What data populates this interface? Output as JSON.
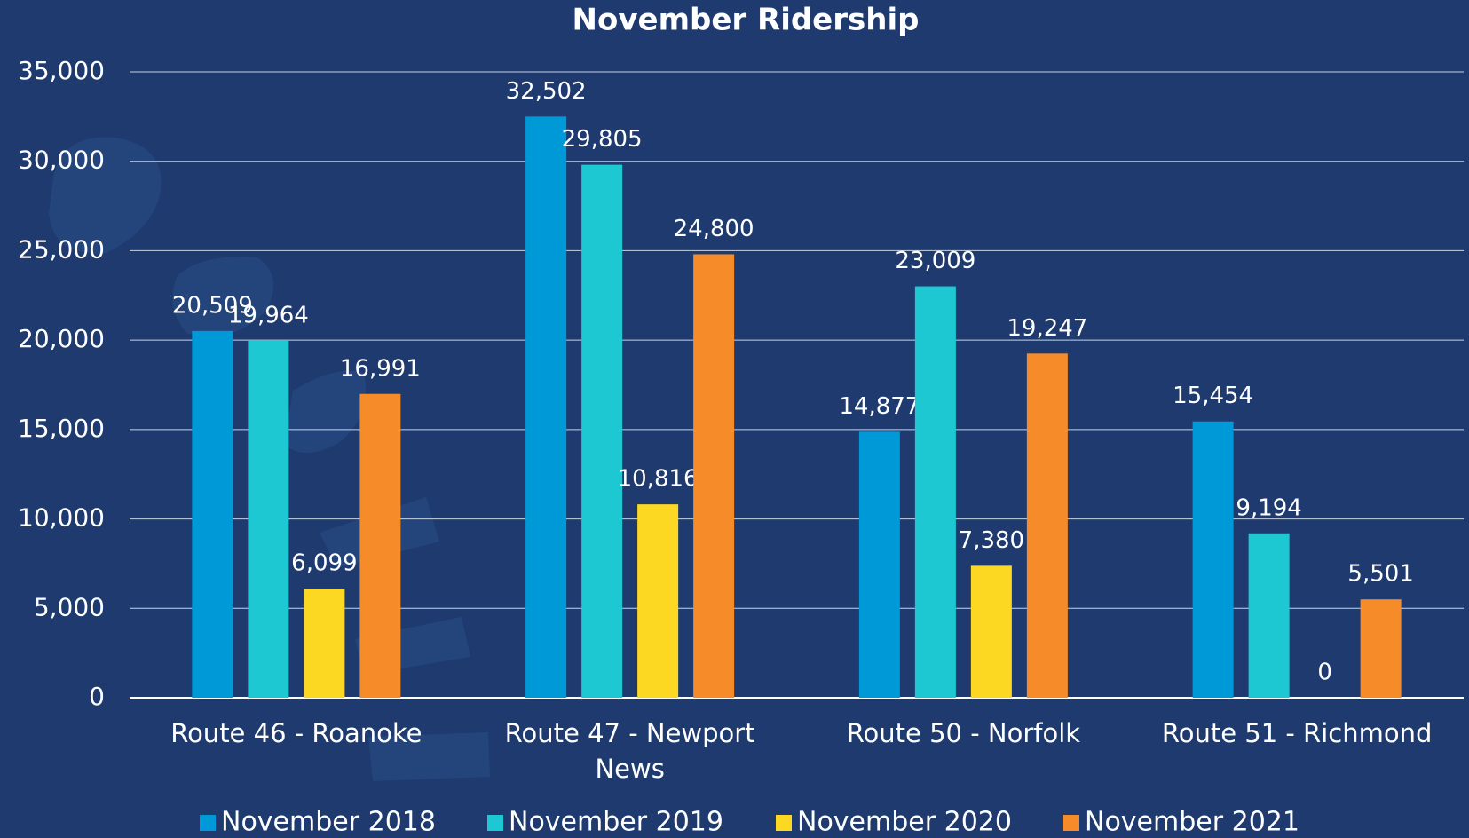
{
  "chart_data": {
    "type": "bar",
    "title": "November Ridership",
    "categories": [
      "Route 46 - Roanoke",
      "Route 47 - Newport News",
      "Route 50 - Norfolk",
      "Route 51 - Richmond"
    ],
    "series": [
      {
        "name": "November 2018",
        "color": "#0099d8",
        "values": [
          20509,
          32502,
          14877,
          15454
        ],
        "value_labels": [
          "20,509",
          "32,502",
          "14,877",
          "15,454"
        ]
      },
      {
        "name": "November 2019",
        "color": "#1ec8d2",
        "values": [
          19964,
          29805,
          23009,
          9194
        ],
        "value_labels": [
          "19,964",
          "29,805",
          "23,009",
          "9,194"
        ]
      },
      {
        "name": "November 2020",
        "color": "#fdd823",
        "values": [
          6099,
          10816,
          7380,
          0
        ],
        "value_labels": [
          "6,099",
          "10,816",
          "7,380",
          "0"
        ]
      },
      {
        "name": "November 2021",
        "color": "#f68b2a",
        "values": [
          16991,
          24800,
          19247,
          5501
        ],
        "value_labels": [
          "16,991",
          "24,800",
          "19,247",
          "5,501"
        ]
      }
    ],
    "ylim": [
      0,
      35000
    ],
    "yticks": [
      0,
      {
        "value": 5000,
        "label": "5,000"
      },
      {
        "value": 10000,
        "label": "10,000"
      },
      {
        "value": 15000,
        "label": "15,000"
      },
      {
        "value": 20000,
        "label": "20,000"
      },
      {
        "value": 25000,
        "label": "25,000"
      },
      {
        "value": 30000,
        "label": "30,000"
      },
      {
        "value": 35000,
        "label": "35,000"
      }
    ],
    "grid": true,
    "legend": "bottom"
  }
}
